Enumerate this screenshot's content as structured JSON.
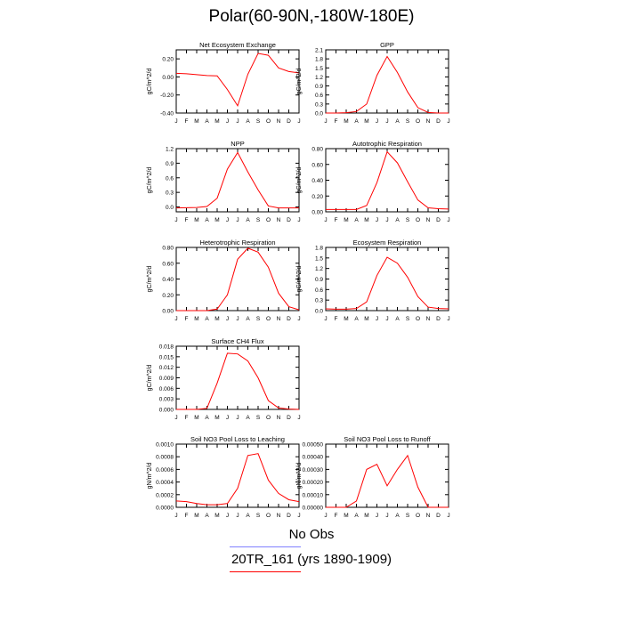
{
  "title": "Polar(60-90N,-180W-180E)",
  "colors": {
    "model": "#ff0000",
    "obs_line": "#8080ff",
    "axis": "#000000"
  },
  "legend": {
    "obs_label": "No Obs",
    "model_label": "20TR_161 (yrs 1890-1909)"
  },
  "months": [
    "J",
    "F",
    "M",
    "A",
    "M",
    "J",
    "J",
    "A",
    "S",
    "O",
    "N",
    "D",
    "J"
  ],
  "chart_data": [
    {
      "type": "line",
      "title": "Net Ecosystem Exchange",
      "ylabel": "gC/m^2/d",
      "ylim": [
        -0.4,
        0.3
      ],
      "yticks": [
        "0.20",
        "0.00",
        "-0.20",
        "-0.40"
      ],
      "ytick_values": [
        0.2,
        0.0,
        -0.2,
        -0.4
      ],
      "values": [
        0.04,
        0.035,
        0.025,
        0.015,
        0.012,
        -0.14,
        -0.32,
        0.03,
        0.26,
        0.24,
        0.1,
        0.06,
        0.045
      ]
    },
    {
      "type": "line",
      "title": "GPP",
      "ylabel": "gC/m^2/d",
      "ylim": [
        0,
        2.1
      ],
      "yticks": [
        "2.1",
        "1.8",
        "1.5",
        "1.2",
        "0.9",
        "0.6",
        "0.3",
        "0.0"
      ],
      "ytick_values": [
        2.1,
        1.8,
        1.5,
        1.2,
        0.9,
        0.6,
        0.3,
        0.0
      ],
      "values": [
        0,
        0,
        0.01,
        0.05,
        0.3,
        1.25,
        1.88,
        1.35,
        0.7,
        0.18,
        0.02,
        0,
        0
      ]
    },
    {
      "type": "line",
      "title": "NPP",
      "ylabel": "gC/m^2/d",
      "ylim": [
        -0.1,
        1.2
      ],
      "yticks": [
        "1.2",
        "0.9",
        "0.6",
        "0.3",
        "0.0"
      ],
      "ytick_values": [
        1.2,
        0.9,
        0.6,
        0.3,
        0.0
      ],
      "values": [
        -0.02,
        -0.015,
        -0.01,
        0.01,
        0.18,
        0.78,
        1.12,
        0.72,
        0.35,
        0.02,
        -0.02,
        -0.02,
        -0.02
      ]
    },
    {
      "type": "line",
      "title": "Autotrophic Respiration",
      "ylabel": "gC/m^2/d",
      "ylim": [
        0,
        0.8
      ],
      "yticks": [
        "0.80",
        "0.60",
        "0.40",
        "0.20",
        "0.00"
      ],
      "ytick_values": [
        0.8,
        0.6,
        0.4,
        0.2,
        0.0
      ],
      "values": [
        0.03,
        0.03,
        0.03,
        0.03,
        0.08,
        0.37,
        0.76,
        0.62,
        0.38,
        0.15,
        0.05,
        0.04,
        0.035
      ]
    },
    {
      "type": "line",
      "title": "Heterotrophic Respiration",
      "ylabel": "gC/m^2/d",
      "ylim": [
        0,
        0.8
      ],
      "yticks": [
        "0.80",
        "0.60",
        "0.40",
        "0.20",
        "0.00"
      ],
      "ytick_values": [
        0.8,
        0.6,
        0.4,
        0.2,
        0.0
      ],
      "values": [
        0,
        0,
        0,
        0,
        0.02,
        0.2,
        0.65,
        0.79,
        0.74,
        0.55,
        0.22,
        0.05,
        0.01
      ]
    },
    {
      "type": "line",
      "title": "Ecosystem Respiration",
      "ylabel": "gC/m^2/d",
      "ylim": [
        0,
        1.8
      ],
      "yticks": [
        "1.8",
        "1.5",
        "1.2",
        "0.9",
        "0.6",
        "0.3",
        "0.0"
      ],
      "ytick_values": [
        1.8,
        1.5,
        1.2,
        0.9,
        0.6,
        0.3,
        0.0
      ],
      "values": [
        0.05,
        0.04,
        0.04,
        0.06,
        0.25,
        1.0,
        1.52,
        1.35,
        0.95,
        0.4,
        0.1,
        0.06,
        0.05
      ]
    },
    {
      "type": "line",
      "title": "Surface CH4 Flux",
      "ylabel": "gC/m^2/d",
      "ylim": [
        0,
        0.018
      ],
      "yticks": [
        "0.018",
        "0.015",
        "0.012",
        "0.009",
        "0.006",
        "0.003",
        "0.000"
      ],
      "ytick_values": [
        0.018,
        0.015,
        0.012,
        0.009,
        0.006,
        0.003,
        0.0
      ],
      "values": [
        0,
        0,
        0,
        0.0003,
        0.0075,
        0.016,
        0.0158,
        0.0138,
        0.009,
        0.0025,
        0.0004,
        0.0001,
        0
      ]
    },
    null,
    {
      "type": "line",
      "title": "Soil NO3 Pool Loss to Leaching",
      "ylabel": "gN/m^2/d",
      "ylim": [
        0,
        0.001
      ],
      "yticks": [
        "0.0010",
        "0.0008",
        "0.0006",
        "0.0004",
        "0.0002",
        "0.0000"
      ],
      "ytick_values": [
        0.001,
        0.0008,
        0.0006,
        0.0004,
        0.0002,
        0.0
      ],
      "values": [
        0.0001,
        9e-05,
        6e-05,
        4e-05,
        4e-05,
        6e-05,
        0.0003,
        0.00082,
        0.00085,
        0.00043,
        0.00022,
        0.00012,
        9e-05
      ]
    },
    {
      "type": "line",
      "title": "Soil NO3 Pool Loss to Runoff",
      "ylabel": "gN/m^2/d",
      "ylim": [
        0,
        0.0005
      ],
      "yticks": [
        "0.00050",
        "0.00040",
        "0.00030",
        "0.00020",
        "0.00010",
        "0.00000"
      ],
      "ytick_values": [
        0.0005,
        0.0004,
        0.0003,
        0.0002,
        0.0001,
        0.0
      ],
      "values": [
        0,
        0,
        0,
        5e-05,
        0.0003,
        0.00034,
        0.00017,
        0.0003,
        0.00041,
        0.00016,
        0,
        0,
        0
      ]
    }
  ]
}
